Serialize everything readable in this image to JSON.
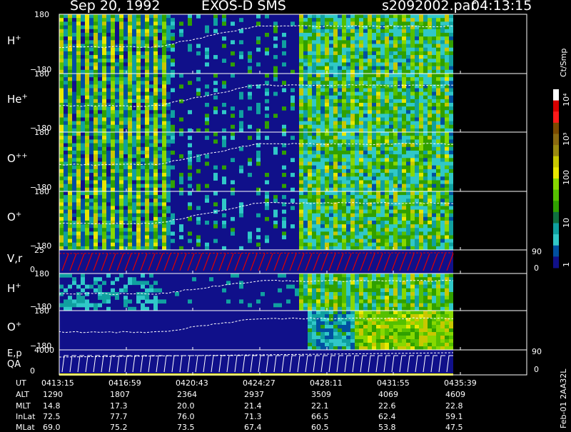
{
  "header": {
    "date": "Sep 20, 1992",
    "instrument": "EXOS-D SMS",
    "file": "s2092002.par",
    "time": "04:13:15"
  },
  "panels": [
    {
      "name": "H",
      "sup": "+",
      "ymax": "180",
      "ymin": "−180"
    },
    {
      "name": "He",
      "sup": "+",
      "ymax": "180",
      "ymin": "−180"
    },
    {
      "name": "O",
      "sup": "++",
      "ymax": "180",
      "ymin": "−180"
    },
    {
      "name": "O",
      "sup": "+",
      "ymax": "180",
      "ymin": "−180"
    },
    {
      "name": "V,r",
      "sup": "",
      "ymax": "25",
      "ymin": "0",
      "right_top": "90",
      "right_bot": "0"
    },
    {
      "name": "H",
      "sup": "+",
      "ymax": "180",
      "ymin": "−180"
    },
    {
      "name": "O",
      "sup": "+",
      "ymax": "180",
      "ymin": "−180"
    },
    {
      "name": "E,p",
      "name2": "QA",
      "sup": "",
      "ymax": "4000",
      "ymin": "0",
      "right_top": "90",
      "right_bot": "0"
    }
  ],
  "colorbar": {
    "unit": "Ct/Smp",
    "labels": [
      "10⁴",
      "10³",
      "100",
      "10",
      "1"
    ],
    "colors": [
      "#ffffff",
      "#d80000",
      "#ff1a1a",
      "#7a4a00",
      "#8a6a10",
      "#9a8a10",
      "#c8c800",
      "#e8e800",
      "#88d800",
      "#55c000",
      "#30a000",
      "#107040",
      "#10a0a0",
      "#30c8c8",
      "#0050a0",
      "#10108a"
    ]
  },
  "table": {
    "row_labels": [
      "UT",
      "ALT",
      "MLT",
      "InLat",
      "MLat"
    ],
    "columns": [
      [
        "0413:15",
        "1290",
        "14.8",
        "72.5",
        "69.0"
      ],
      [
        "0416:59",
        "1807",
        "17.3",
        "77.7",
        "75.2"
      ],
      [
        "0420:43",
        "2364",
        "20.0",
        "76.0",
        "73.5"
      ],
      [
        "0424:27",
        "2937",
        "21.4",
        "71.3",
        "67.4"
      ],
      [
        "0428:11",
        "3509",
        "22.1",
        "66.5",
        "60.5"
      ],
      [
        "0431:55",
        "4069",
        "22.6",
        "62.4",
        "53.8"
      ],
      [
        "0435:39",
        "4609",
        "22.8",
        "59.1",
        "47.5"
      ]
    ]
  },
  "footer_code": "Feb-01 2AA32L",
  "chart_data": {
    "type": "heatmap",
    "title": "Sep 20, 1992 EXOS-D SMS",
    "x_ticks": [
      "0413:15",
      "0416:59",
      "0420:43",
      "0424:27",
      "0428:11",
      "0431:55",
      "0435:39"
    ],
    "ylim_angle": [
      -180,
      180
    ],
    "color_scale": "log",
    "color_range": [
      1,
      10000
    ],
    "grid": false
  }
}
